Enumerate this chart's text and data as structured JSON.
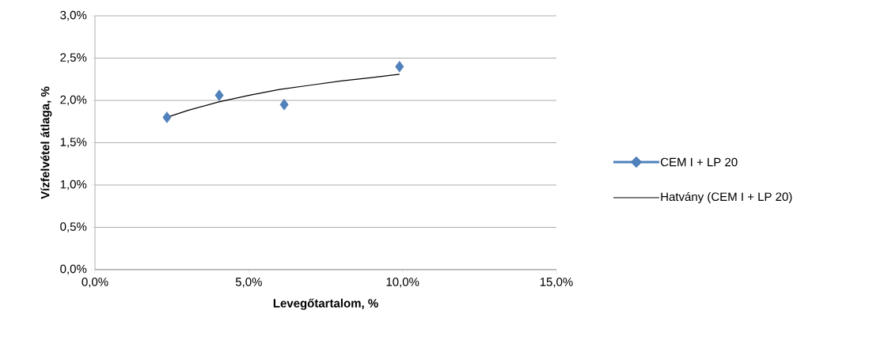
{
  "chart_data": {
    "type": "scatter",
    "xlabel": "Levegőtartalom, %",
    "ylabel": "Vízfelvétel  átlaga, %",
    "series": [
      {
        "name": "CEM I + LP 20",
        "color": "#4f81bd",
        "marker": "diamond",
        "x": [
          2.34,
          4.04,
          6.15,
          9.9
        ],
        "values": [
          1.8,
          2.06,
          1.95,
          2.4
        ]
      },
      {
        "name": "Hatvány (CEM I + LP 20)",
        "type": "line",
        "color": "#000000",
        "marker": "none",
        "x": [
          2.34,
          3,
          4,
          5,
          6,
          7,
          8,
          9,
          9.9
        ],
        "values": [
          1.8,
          1.88,
          1.98,
          2.06,
          2.13,
          2.18,
          2.23,
          2.27,
          2.31
        ]
      }
    ],
    "xlim": [
      0,
      15
    ],
    "ylim": [
      0,
      3
    ],
    "xticks": [
      {
        "value": 0,
        "label": "0,0%"
      },
      {
        "value": 5,
        "label": "5,0%"
      },
      {
        "value": 10,
        "label": "10,0%"
      },
      {
        "value": 15,
        "label": "15,0%"
      }
    ],
    "yticks": [
      {
        "value": 0,
        "label": "0,0%"
      },
      {
        "value": 0.5,
        "label": "0,5%"
      },
      {
        "value": 1,
        "label": "1,0%"
      },
      {
        "value": 1.5,
        "label": "1,5%"
      },
      {
        "value": 2,
        "label": "2,0%"
      },
      {
        "value": 2.5,
        "label": "2,5%"
      },
      {
        "value": 3,
        "label": "3,0%"
      }
    ],
    "grid": "y",
    "legend": "right"
  }
}
